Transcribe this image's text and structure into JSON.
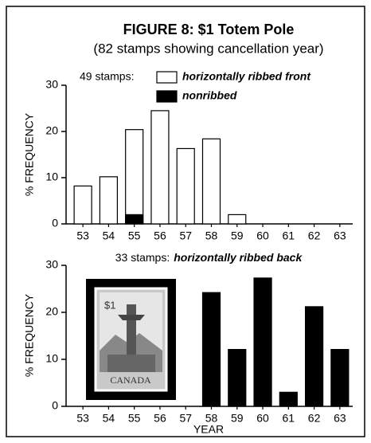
{
  "chart_data": [
    {
      "type": "bar",
      "title": "FIGURE 8: $1 Totem Pole",
      "subtitle": "(82 stamps showing cancellation year)",
      "legend_title": "49 stamps:",
      "ylabel": "% FREQUENCY",
      "categories": [
        "53",
        "54",
        "55",
        "56",
        "57",
        "58",
        "59",
        "60",
        "61",
        "62",
        "63"
      ],
      "series": [
        {
          "name": "horizontally ribbed front",
          "color": "#ffffff",
          "values": [
            8.2,
            10.2,
            20.4,
            24.5,
            16.3,
            18.4,
            2.0,
            0,
            0,
            0,
            0
          ]
        },
        {
          "name": "nonribbed",
          "color": "#000000",
          "values": [
            null,
            null,
            2.0,
            null,
            null,
            null,
            null,
            null,
            null,
            null,
            null
          ]
        }
      ],
      "ylim": [
        0,
        30
      ],
      "yticks": [
        0,
        10,
        20,
        30
      ]
    },
    {
      "type": "bar",
      "title_prefix": "33 stamps:",
      "title": "horizontally ribbed back",
      "ylabel": "% FREQUENCY",
      "xlabel": "YEAR",
      "categories": [
        "53",
        "54",
        "55",
        "56",
        "57",
        "58",
        "59",
        "60",
        "61",
        "62",
        "63"
      ],
      "series": [
        {
          "name": "horizontally ribbed back",
          "color": "#000000",
          "values": [
            0,
            0,
            0,
            0,
            0,
            24.2,
            12.1,
            27.3,
            3.0,
            21.2,
            12.1
          ]
        }
      ],
      "ylim": [
        0,
        30
      ],
      "yticks": [
        0,
        10,
        20,
        30
      ],
      "inset_image": {
        "denomination": "$1",
        "country": "CANADA"
      }
    }
  ]
}
